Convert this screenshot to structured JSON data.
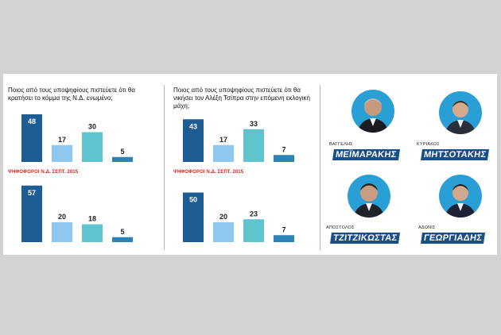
{
  "colors": {
    "dark_blue": "#1e5d94",
    "light_blue": "#8fc8ee",
    "teal": "#5fc4cd",
    "mid_blue": "#2b83b8",
    "red": "#d9261c",
    "name_bg": "#1a4e86"
  },
  "chart_data": [
    {
      "type": "bar",
      "title": "Ποιος από τους υποψηφίους πιστεύετε ότι θα κρατήσει το κόμμα της Ν.Δ. ενωμένο;",
      "groups": [
        {
          "label": "",
          "values": [
            48,
            17,
            30,
            5
          ]
        },
        {
          "label": "ΨΗΦΟΦΟΡΟΙ Ν.Δ. ΣΕΠΤ. 2015",
          "values": [
            57,
            20,
            18,
            5
          ]
        }
      ],
      "series_colors": [
        "#1e5d94",
        "#8fc8ee",
        "#5fc4cd",
        "#2b83b8"
      ]
    },
    {
      "type": "bar",
      "title": "Ποιος από τους υποψηφίους πιστεύετε ότι θα νικήσει τον Αλέξη Τσίπρα στην επόμενη εκλογική μάχη;",
      "groups": [
        {
          "label": "",
          "values": [
            43,
            17,
            33,
            7
          ]
        },
        {
          "label": "ΨΗΦΟΦΟΡΟΙ Ν.Δ. ΣΕΠΤ. 2015",
          "values": [
            50,
            20,
            23,
            7
          ]
        }
      ],
      "series_colors": [
        "#1e5d94",
        "#8fc8ee",
        "#5fc4cd",
        "#2b83b8"
      ]
    }
  ],
  "candidates": [
    {
      "first": "ΒΑΓΓΕΛΗΣ",
      "last": "ΜΕΪΜΑΡΑΚΗΣ",
      "icon": "portrait"
    },
    {
      "first": "ΚΥΡΙΑΚΟΣ",
      "last": "ΜΗΤΣΟΤΑΚΗΣ",
      "icon": "portrait"
    },
    {
      "first": "ΑΠΟΣΤΟΛΟΣ",
      "last": "ΤΖΙΤΖΙΚΩΣΤΑΣ",
      "icon": "portrait"
    },
    {
      "first": "ΑΔΩΝΙΣ",
      "last": "ΓΕΩΡΓΙΑΔΗΣ",
      "icon": "portrait"
    }
  ]
}
